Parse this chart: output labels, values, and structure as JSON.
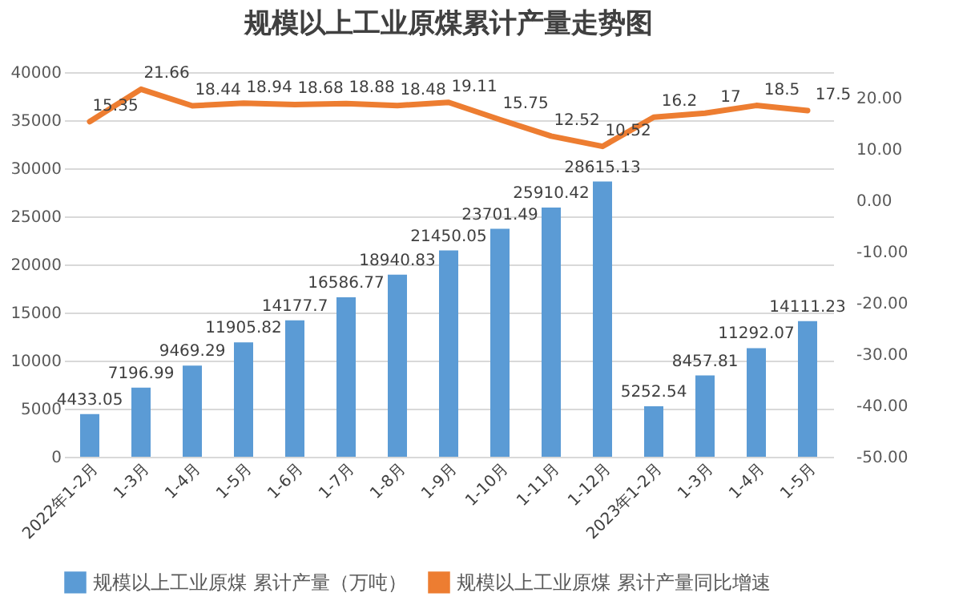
{
  "chart_data": {
    "type": "bar",
    "title": "规模以上工业原煤累计产量走势图",
    "categories": [
      "2022年1-2月",
      "1-3月",
      "1-4月",
      "1-5月",
      "1-6月",
      "1-7月",
      "1-8月",
      "1-9月",
      "1-10月",
      "1-11月",
      "1-12月",
      "2023年1-2月",
      "1-3月",
      "1-4月",
      "1-5月"
    ],
    "series": [
      {
        "name": "规模以上工业原煤 累计产量（万吨）",
        "color": "#5b9bd5",
        "values": [
          4433.05,
          7196.99,
          9469.29,
          11905.82,
          14177.7,
          16586.77,
          18940.83,
          21450.05,
          23701.49,
          25910.42,
          28615.13,
          5252.54,
          8457.81,
          11292.07,
          14111.23
        ]
      },
      {
        "name": "规模以上工业原煤 累计产量同比增速",
        "type": "line",
        "axis": "y2",
        "color": "#ed7d31",
        "values": [
          15.35,
          21.66,
          18.44,
          18.94,
          18.68,
          18.88,
          18.48,
          19.11,
          15.75,
          12.52,
          10.52,
          16.2,
          17,
          18.5,
          17.5
        ]
      }
    ],
    "ylim": [
      0,
      40000
    ],
    "yticks": [
      0,
      5000,
      10000,
      15000,
      20000,
      25000,
      30000,
      35000,
      40000
    ],
    "y2lim": [
      -50,
      25
    ],
    "y2ticks": [
      {
        "value": -50,
        "label": "-50.00"
      },
      {
        "value": -40,
        "label": "-40.00"
      },
      {
        "value": -30,
        "label": "-30.00"
      },
      {
        "value": -20,
        "label": "-20.00"
      },
      {
        "value": -10,
        "label": "-10.00"
      },
      {
        "value": 0,
        "label": "0.00"
      },
      {
        "value": 10,
        "label": "10.00"
      },
      {
        "value": 20,
        "label": "20.00"
      }
    ],
    "grid": "y",
    "legend": "bottom",
    "data_labels": true,
    "marker": "none",
    "line_style": "solid"
  }
}
